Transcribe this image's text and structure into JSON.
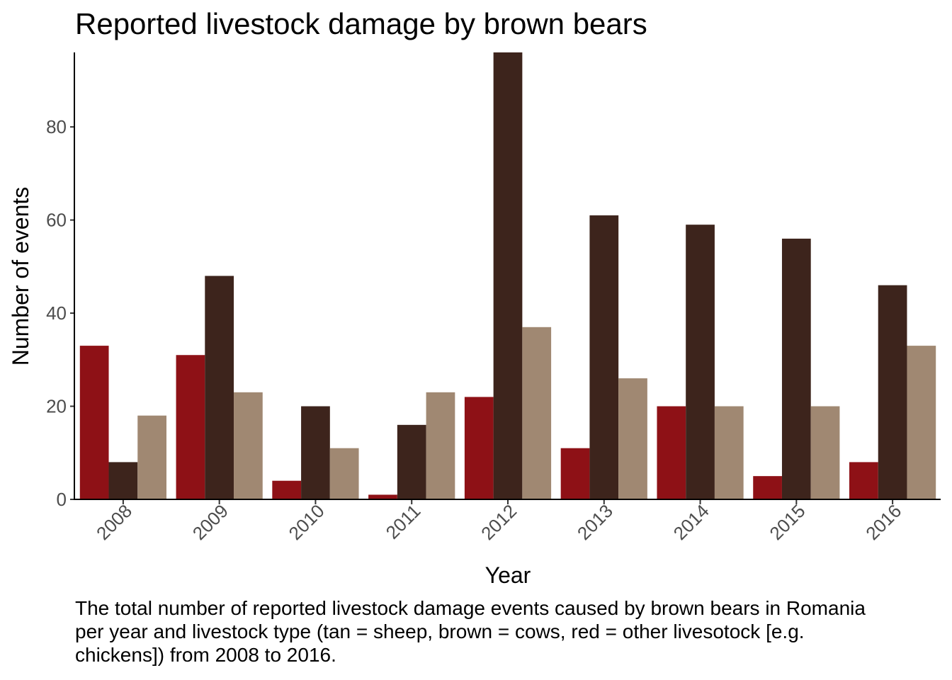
{
  "chart_data": {
    "type": "bar",
    "title": "Reported livestock damage by brown bears",
    "xlabel": "Year",
    "ylabel": "Number of events",
    "categories": [
      "2008",
      "2009",
      "2010",
      "2011",
      "2012",
      "2013",
      "2014",
      "2015",
      "2016"
    ],
    "series": [
      {
        "color": "#8e1116",
        "values": [
          33,
          31,
          4,
          1,
          22,
          11,
          20,
          5,
          8
        ]
      },
      {
        "color": "#3d241c",
        "values": [
          8,
          48,
          20,
          16,
          96,
          61,
          59,
          56,
          46
        ]
      },
      {
        "color": "#a08872",
        "values": [
          18,
          23,
          11,
          23,
          37,
          26,
          20,
          20,
          33
        ]
      }
    ],
    "ylim": [
      0,
      96
    ],
    "yticks": [
      "0",
      "20",
      "40",
      "60",
      "80"
    ],
    "grid": false,
    "legend": "none"
  },
  "caption": {
    "line1": "The total number of reported livestock damage events caused by brown bears in Romania",
    "line2": "per year and livestock type (tan = sheep, brown = cows, red = other livesotock [e.g.",
    "line3": "chickens]) from 2008 to 2016."
  }
}
